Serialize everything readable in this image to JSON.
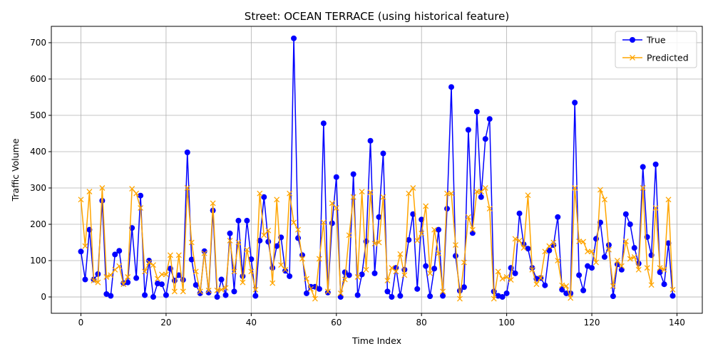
{
  "chart_data": {
    "type": "line",
    "title": "Street: OCEAN TERRACE (using historical feature)",
    "xlabel": "Time Index",
    "ylabel": "Traffic Volume",
    "xlim": [
      -6.95,
      145.95
    ],
    "ylim": [
      -45.0,
      745.0
    ],
    "xticks": [
      0,
      20,
      40,
      60,
      80,
      100,
      120,
      140
    ],
    "yticks": [
      0,
      100,
      200,
      300,
      400,
      500,
      600,
      700
    ],
    "grid": true,
    "legend_position": "top-right",
    "x": [
      0,
      1,
      2,
      3,
      4,
      5,
      6,
      7,
      8,
      9,
      10,
      11,
      12,
      13,
      14,
      15,
      16,
      17,
      18,
      19,
      20,
      21,
      22,
      23,
      24,
      25,
      26,
      27,
      28,
      29,
      30,
      31,
      32,
      33,
      34,
      35,
      36,
      37,
      38,
      39,
      40,
      41,
      42,
      43,
      44,
      45,
      46,
      47,
      48,
      49,
      50,
      51,
      52,
      53,
      54,
      55,
      56,
      57,
      58,
      59,
      60,
      61,
      62,
      63,
      64,
      65,
      66,
      67,
      68,
      69,
      70,
      71,
      72,
      73,
      74,
      75,
      76,
      77,
      78,
      79,
      80,
      81,
      82,
      83,
      84,
      85,
      86,
      87,
      88,
      89,
      90,
      91,
      92,
      93,
      94,
      95,
      96,
      97,
      98,
      99,
      100,
      101,
      102,
      103,
      104,
      105,
      106,
      107,
      108,
      109,
      110,
      111,
      112,
      113,
      114,
      115,
      116,
      117,
      118,
      119,
      120,
      121,
      122,
      123,
      124,
      125,
      126,
      127,
      128,
      129,
      130,
      131,
      132,
      133,
      134,
      135,
      136,
      137,
      138,
      139
    ],
    "series": [
      {
        "name": "True",
        "color": "#0000ff",
        "marker": "circle",
        "values": [
          125,
          48,
          185,
          48,
          63,
          265,
          8,
          3,
          117,
          127,
          38,
          40,
          190,
          52,
          279,
          5,
          100,
          0,
          37,
          35,
          5,
          78,
          45,
          60,
          47,
          398,
          103,
          33,
          10,
          126,
          12,
          238,
          0,
          48,
          5,
          175,
          15,
          210,
          57,
          210,
          104,
          3,
          155,
          275,
          152,
          80,
          140,
          164,
          72,
          57,
          712,
          162,
          115,
          10,
          28,
          28,
          22,
          478,
          12,
          203,
          330,
          0,
          68,
          60,
          338,
          5,
          62,
          153,
          430,
          65,
          220,
          395,
          15,
          0,
          80,
          3,
          75,
          157,
          228,
          22,
          213,
          85,
          2,
          78,
          185,
          3,
          243,
          578,
          113,
          17,
          27,
          460,
          176,
          510,
          275,
          435,
          490,
          15,
          3,
          0,
          10,
          80,
          65,
          230,
          145,
          133,
          80,
          50,
          52,
          32,
          128,
          143,
          220,
          20,
          10,
          10,
          535,
          60,
          18,
          85,
          80,
          160,
          205,
          110,
          143,
          2,
          90,
          75,
          228,
          200,
          135,
          92,
          358,
          165,
          115,
          365,
          68,
          35,
          148,
          3
        ]
      },
      {
        "name": "Predicted",
        "color": "#ffa500",
        "marker": "x",
        "values": [
          268,
          140,
          290,
          45,
          40,
          300,
          55,
          60,
          75,
          85,
          35,
          55,
          298,
          285,
          245,
          70,
          95,
          88,
          50,
          62,
          62,
          115,
          15,
          115,
          15,
          300,
          150,
          70,
          15,
          120,
          18,
          258,
          18,
          20,
          25,
          155,
          70,
          150,
          40,
          130,
          70,
          20,
          285,
          170,
          183,
          38,
          268,
          88,
          75,
          285,
          205,
          185,
          105,
          50,
          22,
          -5,
          105,
          205,
          15,
          258,
          245,
          10,
          48,
          170,
          275,
          55,
          290,
          75,
          288,
          147,
          150,
          275,
          45,
          80,
          70,
          118,
          60,
          285,
          300,
          155,
          175,
          250,
          65,
          185,
          120,
          15,
          285,
          285,
          143,
          -5,
          95,
          220,
          185,
          290,
          290,
          300,
          243,
          -5,
          70,
          50,
          55,
          47,
          160,
          155,
          135,
          280,
          75,
          35,
          52,
          125,
          140,
          150,
          100,
          32,
          30,
          -3,
          300,
          153,
          152,
          125,
          125,
          95,
          295,
          268,
          130,
          30,
          100,
          85,
          153,
          105,
          110,
          75,
          300,
          80,
          33,
          245,
          80,
          75,
          268,
          20
        ]
      }
    ]
  }
}
